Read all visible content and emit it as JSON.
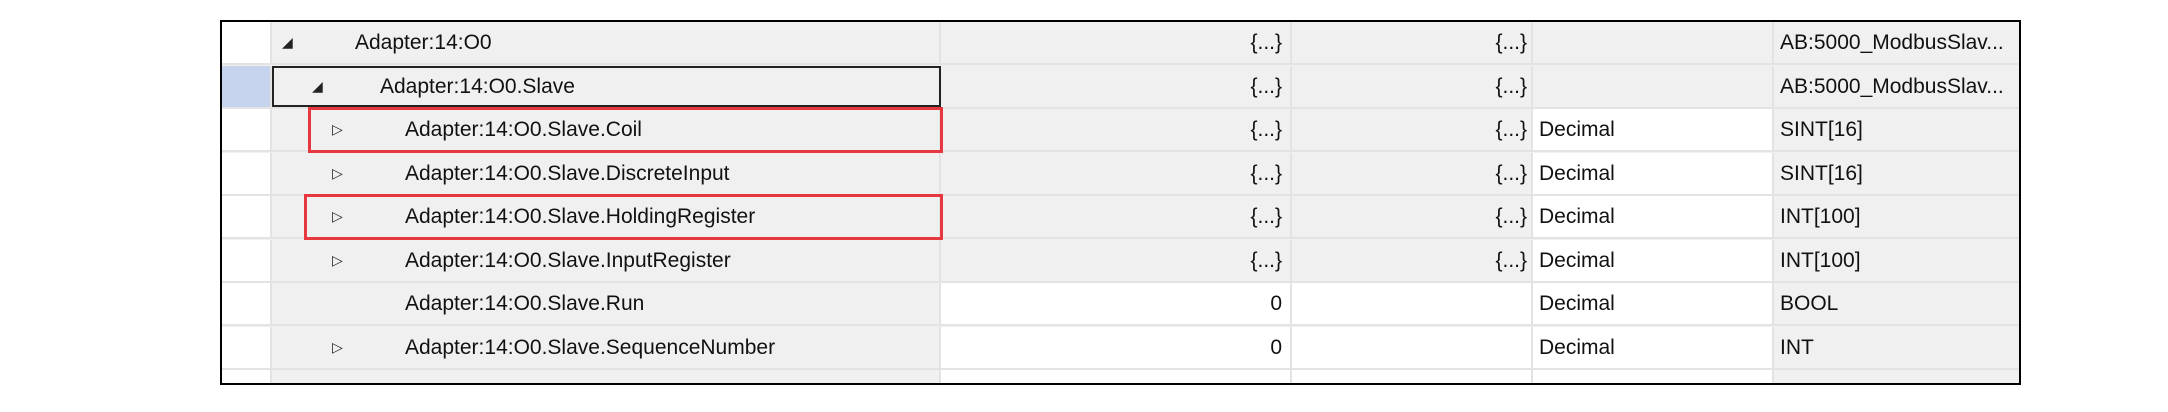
{
  "rows": [
    {
      "name": "Adapter:14:O0",
      "value": "{...}",
      "force": "{...}",
      "style": "",
      "type": "AB:5000_ModbusSlav...",
      "toggle": "expanded"
    },
    {
      "name": "Adapter:14:O0.Slave",
      "value": "{...}",
      "force": "{...}",
      "style": "",
      "type": "AB:5000_ModbusSlav...",
      "toggle": "expanded",
      "selected": true
    },
    {
      "name": "Adapter:14:O0.Slave.Coil",
      "value": "{...}",
      "force": "{...}",
      "style": "Decimal",
      "type": "SINT[16]",
      "toggle": "collapsed",
      "highlighted": true
    },
    {
      "name": "Adapter:14:O0.Slave.DiscreteInput",
      "value": "{...}",
      "force": "{...}",
      "style": "Decimal",
      "type": "SINT[16]",
      "toggle": "collapsed"
    },
    {
      "name": "Adapter:14:O0.Slave.HoldingRegister",
      "value": "{...}",
      "force": "{...}",
      "style": "Decimal",
      "type": "INT[100]",
      "toggle": "collapsed",
      "highlighted": true
    },
    {
      "name": "Adapter:14:O0.Slave.InputRegister",
      "value": "{...}",
      "force": "{...}",
      "style": "Decimal",
      "type": "INT[100]",
      "toggle": "collapsed"
    },
    {
      "name": "Adapter:14:O0.Slave.Run",
      "value": "0",
      "force": "",
      "style": "Decimal",
      "type": "BOOL",
      "toggle": "none"
    },
    {
      "name": "Adapter:14:O0.Slave.SequenceNumber",
      "value": "0",
      "force": "",
      "style": "Decimal",
      "type": "INT",
      "toggle": "collapsed"
    }
  ],
  "colors": {
    "highlight": "#e8383f",
    "selection": "#c5d3ec"
  }
}
